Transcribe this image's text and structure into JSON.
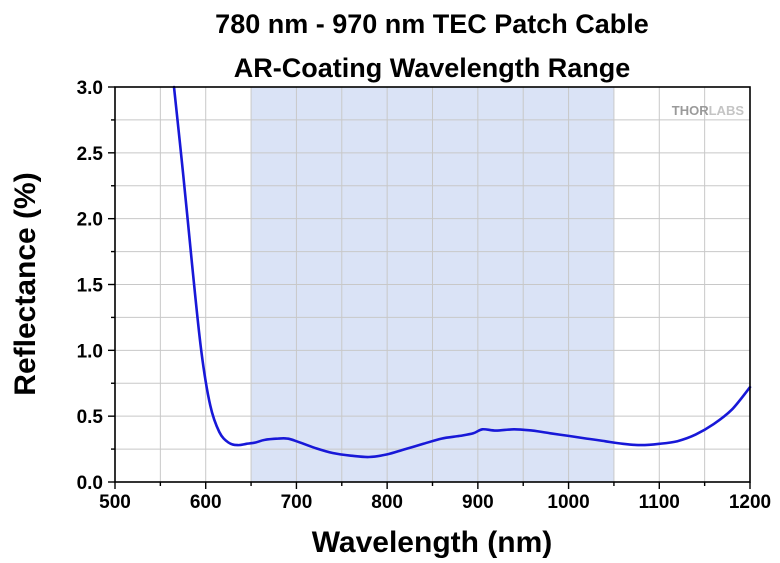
{
  "colors": {
    "band": "#dae3f6",
    "grid": "#c8c8c8",
    "curve": "#1818d8",
    "watermark_dark": "#9a9a9a",
    "watermark_light": "#c4c4c4"
  },
  "watermark": {
    "part1": "THOR",
    "part2": "LABS"
  },
  "chart_data": {
    "type": "line",
    "title": [
      "780 nm - 970 nm TEC Patch Cable",
      "AR-Coating Wavelength Range"
    ],
    "xlabel": "Wavelength (nm)",
    "ylabel": "Reflectance (%)",
    "xlim": [
      500,
      1200
    ],
    "ylim": [
      0,
      3.0
    ],
    "xticks": [
      "500",
      "600",
      "700",
      "800",
      "900",
      "1000",
      "1100",
      "1200"
    ],
    "yticks": [
      "0.0",
      "0.5",
      "1.0",
      "1.5",
      "2.0",
      "2.5",
      "3.0"
    ],
    "grid": true,
    "shaded_band": [
      650,
      1050
    ],
    "series": [
      {
        "x": [
          565,
          575,
          585,
          595,
          605,
          615,
          625,
          635,
          645,
          655,
          665,
          680,
          690,
          700,
          720,
          740,
          760,
          780,
          800,
          820,
          840,
          860,
          880,
          895,
          905,
          920,
          940,
          960,
          980,
          1000,
          1020,
          1040,
          1060,
          1080,
          1100,
          1120,
          1140,
          1160,
          1180,
          1200
        ],
        "y": [
          3.0,
          2.35,
          1.65,
          1.0,
          0.58,
          0.38,
          0.3,
          0.28,
          0.29,
          0.3,
          0.32,
          0.33,
          0.33,
          0.31,
          0.26,
          0.22,
          0.2,
          0.19,
          0.21,
          0.25,
          0.29,
          0.33,
          0.35,
          0.37,
          0.4,
          0.39,
          0.4,
          0.39,
          0.37,
          0.35,
          0.33,
          0.31,
          0.29,
          0.28,
          0.29,
          0.31,
          0.36,
          0.44,
          0.55,
          0.72
        ]
      }
    ]
  }
}
